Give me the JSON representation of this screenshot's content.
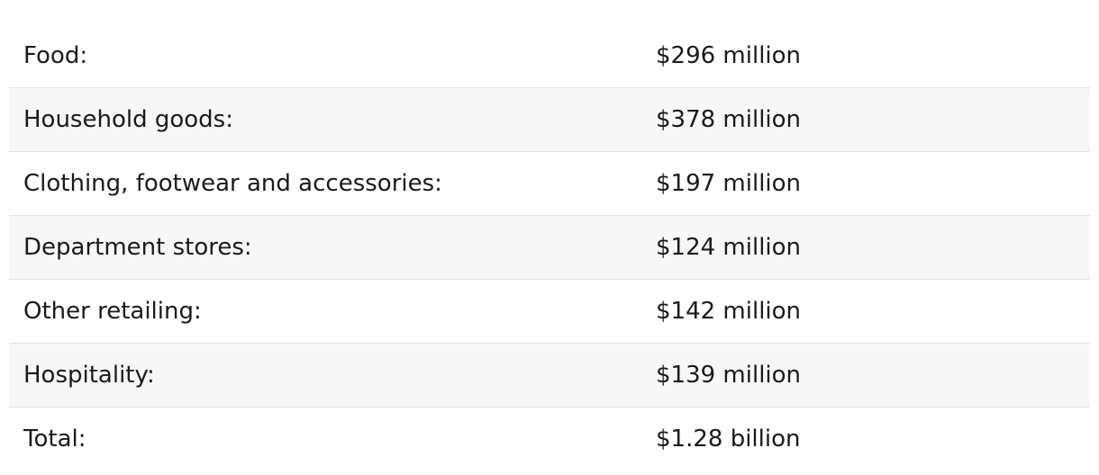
{
  "table": {
    "rows": [
      {
        "label": "Food:",
        "value": "$296 million"
      },
      {
        "label": "Household goods:",
        "value": "$378 million"
      },
      {
        "label": "Clothing, footwear and accessories:",
        "value": "$197 million"
      },
      {
        "label": "Department stores:",
        "value": "$124 million"
      },
      {
        "label": "Other retailing:",
        "value": "$142 million"
      },
      {
        "label": "Hospitality:",
        "value": "$139 million"
      },
      {
        "label": "Total:",
        "value": "$1.28 billion"
      }
    ]
  }
}
